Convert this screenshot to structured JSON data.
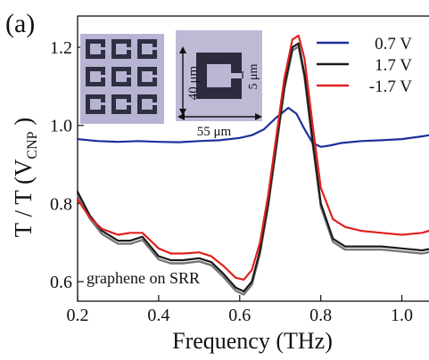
{
  "panel_label": "(a)",
  "chart_data": {
    "type": "line",
    "xlabel": "Frequency (THz)",
    "ylabel": {
      "main": "T / T (V",
      "sub": "CNP",
      "close": " )"
    },
    "xlim": [
      0.2,
      1.1
    ],
    "ylim": [
      0.55,
      1.28
    ],
    "xticks": [
      0.2,
      0.4,
      0.6,
      0.8,
      1.0
    ],
    "yticks": [
      0.6,
      0.8,
      1.0,
      1.2
    ],
    "tick_labels_x": [
      "0.2",
      "0.4",
      "0.6",
      "0.8",
      "1.0"
    ],
    "tick_labels_y": [
      "0.6",
      "0.8",
      "1.0",
      "1.2"
    ],
    "grid": false,
    "legend_position": "top-right",
    "annotation": "graphene on SRR",
    "inset": {
      "dim_height": "40 μm",
      "dim_width": "55 μm",
      "dim_gap": "5 μm"
    },
    "series": [
      {
        "name": "0.7 V",
        "color": "#1f2e9c",
        "x": [
          0.2,
          0.25,
          0.3,
          0.35,
          0.4,
          0.45,
          0.5,
          0.55,
          0.6,
          0.63,
          0.66,
          0.69,
          0.72,
          0.74,
          0.76,
          0.78,
          0.8,
          0.82,
          0.85,
          0.9,
          0.95,
          1.0,
          1.05,
          1.1
        ],
        "y": [
          0.965,
          0.96,
          0.958,
          0.96,
          0.958,
          0.957,
          0.96,
          0.962,
          0.968,
          0.975,
          0.99,
          1.02,
          1.045,
          1.03,
          0.99,
          0.955,
          0.945,
          0.948,
          0.955,
          0.96,
          0.962,
          0.965,
          0.972,
          0.98
        ]
      },
      {
        "name": "1.7 V",
        "color": "#1a1a1a",
        "x": [
          0.2,
          0.23,
          0.26,
          0.3,
          0.33,
          0.36,
          0.4,
          0.43,
          0.46,
          0.5,
          0.53,
          0.56,
          0.59,
          0.61,
          0.63,
          0.65,
          0.67,
          0.69,
          0.71,
          0.73,
          0.745,
          0.76,
          0.78,
          0.8,
          0.83,
          0.86,
          0.9,
          0.95,
          1.0,
          1.05,
          1.1
        ],
        "y": [
          0.83,
          0.77,
          0.73,
          0.705,
          0.705,
          0.715,
          0.665,
          0.655,
          0.655,
          0.66,
          0.65,
          0.62,
          0.585,
          0.575,
          0.6,
          0.68,
          0.8,
          0.95,
          1.1,
          1.2,
          1.21,
          1.13,
          0.96,
          0.8,
          0.71,
          0.69,
          0.69,
          0.69,
          0.685,
          0.68,
          0.69
        ]
      },
      {
        "name": "-1.7 V",
        "color": "#e0211f",
        "x": [
          0.2,
          0.23,
          0.26,
          0.3,
          0.33,
          0.36,
          0.4,
          0.43,
          0.46,
          0.5,
          0.53,
          0.56,
          0.59,
          0.61,
          0.63,
          0.65,
          0.67,
          0.69,
          0.71,
          0.73,
          0.745,
          0.76,
          0.78,
          0.8,
          0.83,
          0.86,
          0.9,
          0.95,
          1.0,
          1.05,
          1.1
        ],
        "y": [
          0.81,
          0.765,
          0.735,
          0.72,
          0.725,
          0.725,
          0.685,
          0.672,
          0.672,
          0.675,
          0.665,
          0.64,
          0.61,
          0.605,
          0.63,
          0.7,
          0.82,
          0.97,
          1.12,
          1.22,
          1.23,
          1.17,
          1.0,
          0.84,
          0.76,
          0.74,
          0.73,
          0.725,
          0.72,
          0.725,
          0.74
        ]
      }
    ],
    "extra_gray": {
      "color": "#777777",
      "offsets": [
        0.0,
        -0.01,
        0.0,
        0.0
      ]
    }
  }
}
